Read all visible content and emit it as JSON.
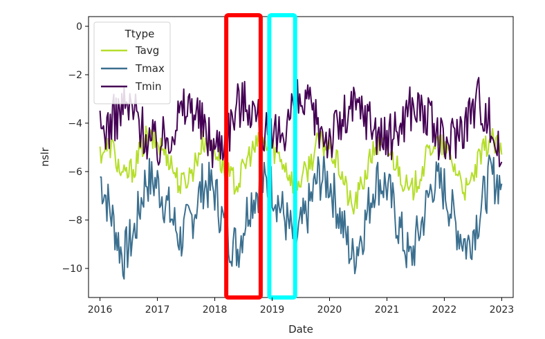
{
  "chart_data": {
    "type": "line",
    "xlabel": "Date",
    "ylabel": "nslr",
    "xlim": [
      2015.8,
      2023.2
    ],
    "ylim": [
      -11.2,
      0.4
    ],
    "x_ticks": [
      2016,
      2017,
      2018,
      2019,
      2020,
      2021,
      2022,
      2023
    ],
    "y_ticks": [
      0,
      -2,
      -4,
      -6,
      -8,
      -10
    ],
    "y_tick_labels": [
      "0",
      "−2",
      "−4",
      "−6",
      "−8",
      "−10"
    ],
    "grid": false,
    "legend": {
      "title": "Ttype",
      "placement": "top-left",
      "entries": [
        "Tavg",
        "Tmax",
        "Tmin"
      ]
    },
    "colors": {
      "Tavg": "#b5de2b",
      "Tmax": "#3b6f8f",
      "Tmin": "#440154",
      "highlight_red": "#ff0000",
      "highlight_cyan": "#00ffff"
    },
    "highlights": [
      {
        "name": "red-highlight-box",
        "x_range": [
          2018.2,
          2018.8
        ],
        "color": "#ff0000"
      },
      {
        "name": "cyan-highlight-box",
        "x_range": [
          2018.95,
          2019.4
        ],
        "color": "#00ffff"
      }
    ],
    "series": [
      {
        "name": "Tavg",
        "x": [
          2016.0,
          2016.2,
          2016.4,
          2016.6,
          2016.8,
          2017.0,
          2017.2,
          2017.4,
          2017.6,
          2017.8,
          2018.0,
          2018.2,
          2018.4,
          2018.6,
          2018.8,
          2019.0,
          2019.2,
          2019.4,
          2019.6,
          2019.8,
          2020.0,
          2020.2,
          2020.4,
          2020.6,
          2020.8,
          2021.0,
          2021.2,
          2021.4,
          2021.6,
          2021.8,
          2022.0,
          2022.2,
          2022.4,
          2022.6,
          2022.8,
          2023.0
        ],
        "values": [
          -5.2,
          -4.9,
          -6.3,
          -5.8,
          -4.6,
          -4.8,
          -5.4,
          -6.6,
          -6.0,
          -4.7,
          -5.0,
          -6.1,
          -6.5,
          -5.3,
          -4.8,
          -5.0,
          -5.6,
          -6.6,
          -6.0,
          -4.8,
          -5.0,
          -6.0,
          -7.6,
          -6.3,
          -4.9,
          -5.0,
          -5.8,
          -7.0,
          -6.0,
          -4.8,
          -5.0,
          -5.9,
          -6.9,
          -5.6,
          -4.6,
          -5.3
        ]
      },
      {
        "name": "Tmax",
        "x": [
          2016.0,
          2016.2,
          2016.4,
          2016.6,
          2016.8,
          2017.0,
          2017.2,
          2017.4,
          2017.6,
          2017.8,
          2018.0,
          2018.2,
          2018.4,
          2018.6,
          2018.8,
          2019.0,
          2019.2,
          2019.4,
          2019.6,
          2019.8,
          2020.0,
          2020.2,
          2020.4,
          2020.6,
          2020.8,
          2021.0,
          2021.2,
          2021.4,
          2021.6,
          2021.8,
          2022.0,
          2022.2,
          2022.4,
          2022.6,
          2022.8,
          2023.0
        ],
        "values": [
          -6.2,
          -7.8,
          -9.6,
          -8.5,
          -6.3,
          -6.5,
          -7.6,
          -8.8,
          -7.9,
          -6.5,
          -6.8,
          -8.6,
          -9.2,
          -7.3,
          -6.5,
          -6.6,
          -7.8,
          -8.9,
          -7.8,
          -6.2,
          -6.4,
          -8.0,
          -9.6,
          -8.3,
          -6.3,
          -6.6,
          -8.2,
          -9.7,
          -8.2,
          -6.4,
          -6.7,
          -8.2,
          -9.1,
          -7.8,
          -6.2,
          -6.5
        ]
      },
      {
        "name": "Tmin",
        "x": [
          2016.0,
          2016.2,
          2016.4,
          2016.6,
          2016.8,
          2017.0,
          2017.2,
          2017.4,
          2017.6,
          2017.8,
          2018.0,
          2018.2,
          2018.4,
          2018.6,
          2018.8,
          2019.0,
          2019.2,
          2019.4,
          2019.6,
          2019.8,
          2020.0,
          2020.2,
          2020.4,
          2020.6,
          2020.8,
          2021.0,
          2021.2,
          2021.4,
          2021.6,
          2021.8,
          2022.0,
          2022.2,
          2022.4,
          2022.6,
          2022.8,
          2023.0
        ],
        "values": [
          -4.4,
          -4.0,
          -3.3,
          -3.5,
          -4.5,
          -5.0,
          -4.4,
          -3.6,
          -3.2,
          -4.2,
          -5.0,
          -4.5,
          -3.2,
          -3.1,
          -4.1,
          -4.9,
          -4.2,
          -3.2,
          -3.3,
          -4.1,
          -4.6,
          -4.0,
          -3.4,
          -3.5,
          -4.2,
          -4.8,
          -4.2,
          -3.3,
          -3.4,
          -4.2,
          -5.0,
          -4.4,
          -3.8,
          -2.9,
          -4.0,
          -5.6
        ]
      }
    ]
  }
}
